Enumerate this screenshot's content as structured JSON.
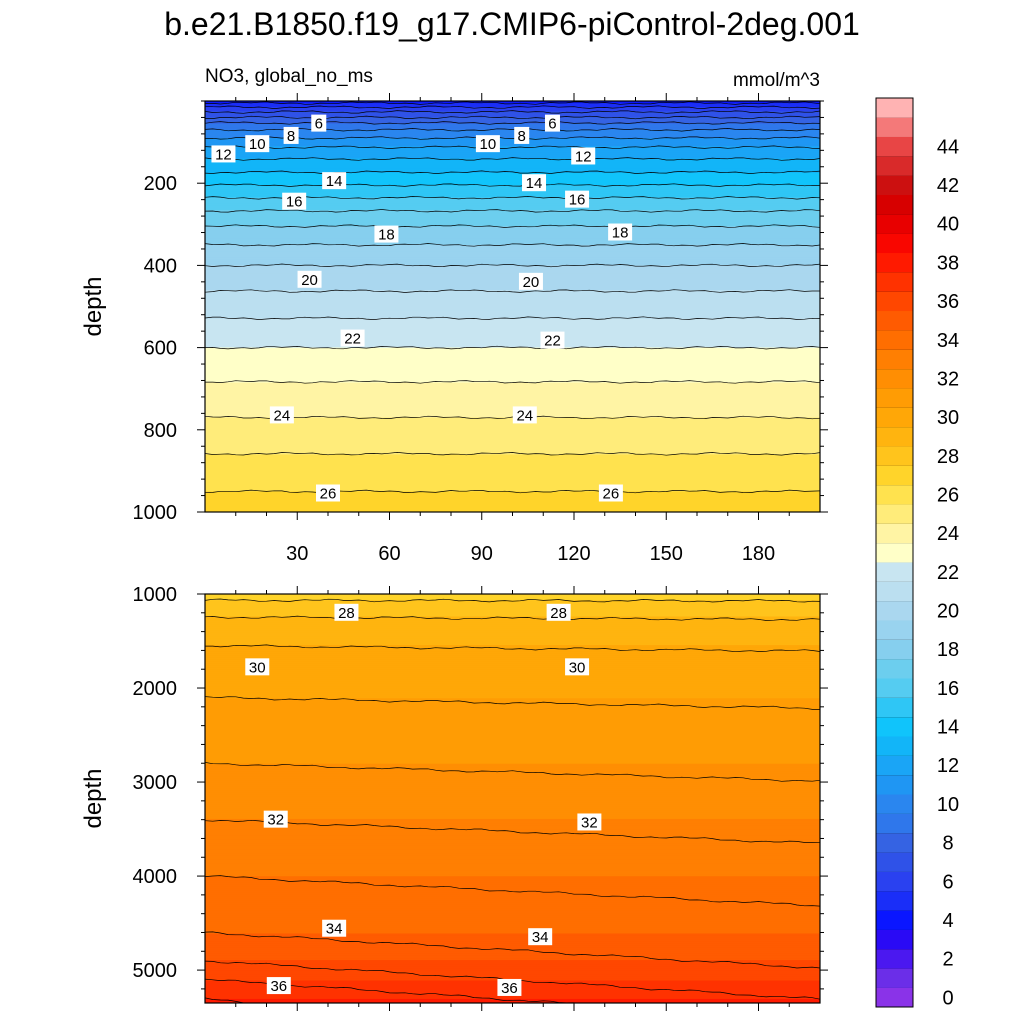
{
  "title": "b.e21.B1850.f19_g17.CMIP6-piControl-2deg.001",
  "variable_label": "NO3, global_no_ms",
  "units": "mmol/m^3",
  "colors": {
    "levels": [
      -1,
      0,
      1,
      2,
      3,
      4,
      5,
      6,
      7,
      8,
      9,
      10,
      11,
      12,
      13,
      14,
      15,
      16,
      17,
      18,
      19,
      20,
      21,
      22,
      23,
      24,
      25,
      26,
      27,
      28,
      29,
      30,
      31,
      32,
      33,
      34,
      35,
      36,
      37,
      38,
      39,
      40,
      41,
      42,
      43,
      44,
      45
    ],
    "fills": [
      "#8a33e8",
      "#6b2ee8",
      "#4b18f0",
      "#2a0af5",
      "#0a16ff",
      "#1a2ef8",
      "#2a41f0",
      "#2f52e8",
      "#3563e3",
      "#2f77eb",
      "#2a86ef",
      "#1f96f3",
      "#1aa5f6",
      "#12b5f8",
      "#10c4fb",
      "#2fc6f5",
      "#55ccf1",
      "#6cceee",
      "#86cfee",
      "#99d3ef",
      "#aad7ef",
      "#bbdff0",
      "#c8e5f1",
      "#ffffc8",
      "#fff4a4",
      "#ffec7a",
      "#ffe24e",
      "#ffd42a",
      "#ffc41c",
      "#ffb40f",
      "#ffa707",
      "#ff9c04",
      "#ff8e03",
      "#ff7f02",
      "#ff6e01",
      "#ff5b01",
      "#ff4700",
      "#ff3200",
      "#ff1a00",
      "#f90600",
      "#e80000",
      "#d70000",
      "#cc1010",
      "#d92a2a",
      "#e84545",
      "#f47979",
      "#ffb3b3"
    ]
  },
  "colorbar": {
    "tick_labels": [
      "0",
      "2",
      "4",
      "6",
      "8",
      "10",
      "12",
      "14",
      "16",
      "18",
      "20",
      "22",
      "24",
      "26",
      "28",
      "30",
      "32",
      "34",
      "36",
      "38",
      "40",
      "42",
      "44"
    ]
  },
  "chart_data": [
    {
      "type": "contour",
      "panel": "upper",
      "title": "NO3, global_no_ms",
      "units": "mmol/m^3",
      "xlabel": "",
      "ylabel": "depth",
      "xlim": [
        0,
        200
      ],
      "ylim": [
        1000,
        0
      ],
      "x_ticks": [
        30,
        60,
        90,
        120,
        150,
        180
      ],
      "y_ticks": [
        200,
        400,
        600,
        800,
        1000
      ],
      "profile": {
        "depth": [
          0,
          20,
          40,
          60,
          80,
          100,
          120,
          150,
          180,
          220,
          260,
          300,
          350,
          400,
          450,
          500,
          550,
          600,
          650,
          700,
          750,
          800,
          850,
          900,
          950,
          1000
        ],
        "no3": [
          3.5,
          5.5,
          7.0,
          8.5,
          9.5,
          10.5,
          11.3,
          12.3,
          13.2,
          14.5,
          15.8,
          16.9,
          18.0,
          19.0,
          19.8,
          20.6,
          21.3,
          22.0,
          22.6,
          23.2,
          23.8,
          24.3,
          24.9,
          25.5,
          26.0,
          26.5
        ]
      },
      "contour_labels": [
        {
          "value": "6",
          "x": 37,
          "depth": 55
        },
        {
          "value": "8",
          "x": 28,
          "depth": 85
        },
        {
          "value": "10",
          "x": 17,
          "depth": 105
        },
        {
          "value": "12",
          "x": 6,
          "depth": 130
        },
        {
          "value": "14",
          "x": 42,
          "depth": 195
        },
        {
          "value": "16",
          "x": 29,
          "depth": 245
        },
        {
          "value": "18",
          "x": 59,
          "depth": 325
        },
        {
          "value": "20",
          "x": 34,
          "depth": 435
        },
        {
          "value": "22",
          "x": 48,
          "depth": 578
        },
        {
          "value": "24",
          "x": 25,
          "depth": 765
        },
        {
          "value": "26",
          "x": 40,
          "depth": 955
        },
        {
          "value": "6",
          "x": 113,
          "depth": 55
        },
        {
          "value": "8",
          "x": 103,
          "depth": 85
        },
        {
          "value": "10",
          "x": 92,
          "depth": 105
        },
        {
          "value": "12",
          "x": 123,
          "depth": 135
        },
        {
          "value": "14",
          "x": 107,
          "depth": 200
        },
        {
          "value": "16",
          "x": 121,
          "depth": 240
        },
        {
          "value": "18",
          "x": 135,
          "depth": 320
        },
        {
          "value": "20",
          "x": 106,
          "depth": 440
        },
        {
          "value": "22",
          "x": 113,
          "depth": 583
        },
        {
          "value": "24",
          "x": 104,
          "depth": 765
        },
        {
          "value": "26",
          "x": 132,
          "depth": 955
        }
      ]
    },
    {
      "type": "contour",
      "panel": "lower",
      "xlabel": "",
      "ylabel": "depth",
      "xlim": [
        0,
        200
      ],
      "ylim": [
        5350,
        1000
      ],
      "y_ticks": [
        1000,
        2000,
        3000,
        4000,
        5000
      ],
      "profile": {
        "depth": [
          1000,
          1100,
          1300,
          1500,
          1800,
          2100,
          2500,
          2800,
          3100,
          3400,
          3700,
          4000,
          4300,
          4600,
          4900,
          5100,
          5350
        ],
        "no3": [
          26.6,
          27.2,
          28.3,
          28.9,
          29.5,
          30.0,
          30.5,
          31.0,
          31.5,
          32.0,
          32.5,
          33.0,
          33.5,
          34.0,
          35.0,
          36.0,
          37.2
        ]
      },
      "contour_labels": [
        {
          "value": "28",
          "x": 46,
          "depth": 1200
        },
        {
          "value": "28",
          "x": 115,
          "depth": 1200
        },
        {
          "value": "30",
          "x": 17,
          "depth": 1780
        },
        {
          "value": "30",
          "x": 121,
          "depth": 1780
        },
        {
          "value": "32",
          "x": 23,
          "depth": 3400
        },
        {
          "value": "32",
          "x": 125,
          "depth": 3430
        },
        {
          "value": "34",
          "x": 42,
          "depth": 4560
        },
        {
          "value": "34",
          "x": 109,
          "depth": 4650
        },
        {
          "value": "36",
          "x": 24,
          "depth": 5170
        },
        {
          "value": "36",
          "x": 99,
          "depth": 5190
        }
      ]
    }
  ]
}
